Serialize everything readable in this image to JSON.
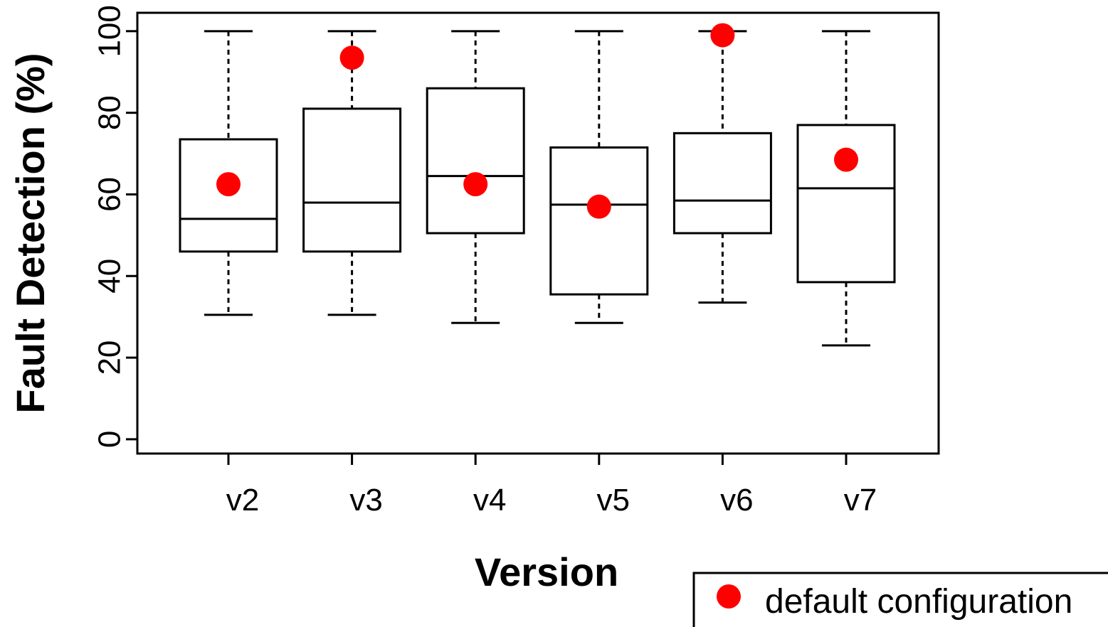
{
  "chart_data": {
    "type": "boxplot",
    "xlabel": "Version",
    "ylabel": "Fault Detection (%)",
    "ylim": [
      -3.5,
      104.5
    ],
    "yticks": [
      0,
      20,
      40,
      60,
      80,
      100
    ],
    "categories": [
      "v2",
      "v3",
      "v4",
      "v5",
      "v6",
      "v7"
    ],
    "boxes": [
      {
        "category": "v2",
        "whisker_low": 30.5,
        "q1": 46,
        "median": 54,
        "q3": 73.5,
        "whisker_high": 100
      },
      {
        "category": "v3",
        "whisker_low": 30.5,
        "q1": 46,
        "median": 58,
        "q3": 81,
        "whisker_high": 100
      },
      {
        "category": "v4",
        "whisker_low": 28.5,
        "q1": 50.5,
        "median": 64.5,
        "q3": 86,
        "whisker_high": 100
      },
      {
        "category": "v5",
        "whisker_low": 28.5,
        "q1": 35.5,
        "median": 57.5,
        "q3": 71.5,
        "whisker_high": 100
      },
      {
        "category": "v6",
        "whisker_low": 33.5,
        "q1": 50.5,
        "median": 58.5,
        "q3": 75,
        "whisker_high": 100
      },
      {
        "category": "v7",
        "whisker_low": 23,
        "q1": 38.5,
        "median": 61.5,
        "q3": 77,
        "whisker_high": 100
      }
    ],
    "series": [
      {
        "name": "default configuration",
        "color": "#ff0000",
        "points": [
          {
            "category": "v2",
            "value": 62.5
          },
          {
            "category": "v3",
            "value": 93.5
          },
          {
            "category": "v4",
            "value": 62.5
          },
          {
            "category": "v5",
            "value": 57
          },
          {
            "category": "v6",
            "value": 99
          },
          {
            "category": "v7",
            "value": 68.5
          }
        ]
      }
    ],
    "legend": {
      "placement": "bottom-right",
      "label": "default configuration"
    },
    "grid": false
  }
}
